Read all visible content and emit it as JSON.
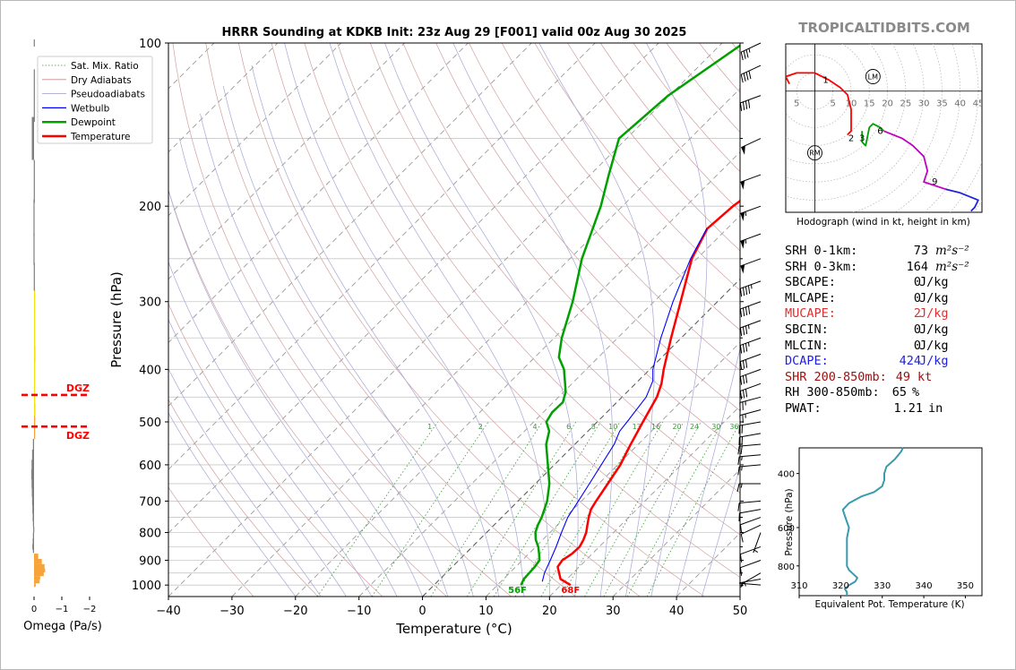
{
  "chart_data": [
    {
      "type": "line",
      "name": "skewt",
      "title": "HRRR Sounding at KDKB Init: 23z Aug 29 [F001] valid 00z Aug 30 2025",
      "xlabel": "Temperature (°C)",
      "ylabel": "Pressure (hPa)",
      "xlim": [
        -40,
        50
      ],
      "ylim": [
        1050,
        100
      ],
      "y_scale": "log",
      "x_ticks": [
        "−40",
        "−30",
        "−20",
        "−10",
        "0",
        "10",
        "20",
        "30",
        "40",
        "50"
      ],
      "y_ticks": [
        "100",
        "200",
        "300",
        "400",
        "500",
        "600",
        "700",
        "800",
        "900",
        "1000"
      ],
      "grid": true,
      "legend_position": "top-left",
      "legend": [
        {
          "label": "Sat. Mix. Ratio",
          "color": "#2ca02c",
          "style": "dotted"
        },
        {
          "label": "Dry Adiabats",
          "color": "#c38a8a",
          "style": "solid"
        },
        {
          "label": "Pseudoadiabats",
          "color": "#9a9ac8",
          "style": "solid"
        },
        {
          "label": "Wetbulb",
          "color": "#0000ff",
          "style": "solid"
        },
        {
          "label": "Dewpoint",
          "color": "#00a000",
          "style": "solid"
        },
        {
          "label": "Temperature",
          "color": "#ff0000",
          "style": "solid"
        }
      ],
      "mixing_ratio_labels": [
        "1",
        "2",
        "4",
        "6",
        "8",
        "10",
        "13",
        "16",
        "20",
        "24",
        "30",
        "36"
      ],
      "series": [
        {
          "key": "temperature",
          "color": "#ff0000",
          "points": [
            [
              1000,
              21.5
            ],
            [
              975,
              19.0
            ],
            [
              950,
              17.8
            ],
            [
              925,
              16.6
            ],
            [
              900,
              16.3
            ],
            [
              875,
              16.8
            ],
            [
              850,
              16.9
            ],
            [
              825,
              16.4
            ],
            [
              800,
              15.7
            ],
            [
              775,
              14.7
            ],
            [
              750,
              13.7
            ],
            [
              725,
              12.8
            ],
            [
              700,
              12.3
            ],
            [
              650,
              11.4
            ],
            [
              600,
              10.4
            ],
            [
              550,
              8.8
            ],
            [
              500,
              7.2
            ],
            [
              450,
              5.5
            ],
            [
              425,
              4.1
            ],
            [
              400,
              2.2
            ],
            [
              350,
              -1.6
            ],
            [
              300,
              -5.8
            ],
            [
              250,
              -10.8
            ],
            [
              220,
              -13.1
            ],
            [
              200,
              -12.6
            ],
            [
              175,
              -10.9
            ],
            [
              150,
              -8.8
            ],
            [
              125,
              -5.9
            ],
            [
              100,
              -1.7
            ]
          ]
        },
        {
          "key": "dewpoint",
          "color": "#00a000",
          "points": [
            [
              1000,
              13.7
            ],
            [
              975,
              13.2
            ],
            [
              950,
              13.1
            ],
            [
              925,
              13.0
            ],
            [
              900,
              12.7
            ],
            [
              875,
              11.6
            ],
            [
              850,
              10.4
            ],
            [
              825,
              8.9
            ],
            [
              800,
              7.7
            ],
            [
              775,
              6.9
            ],
            [
              750,
              6.3
            ],
            [
              700,
              4.6
            ],
            [
              650,
              2.2
            ],
            [
              600,
              -1.0
            ],
            [
              550,
              -4.5
            ],
            [
              520,
              -6.1
            ],
            [
              500,
              -8.0
            ],
            [
              480,
              -8.6
            ],
            [
              460,
              -8.5
            ],
            [
              440,
              -9.7
            ],
            [
              400,
              -13.5
            ],
            [
              380,
              -16.2
            ],
            [
              350,
              -18.8
            ],
            [
              300,
              -22.8
            ],
            [
              250,
              -28.1
            ],
            [
              200,
              -33.4
            ],
            [
              175,
              -37.1
            ],
            [
              150,
              -41.2
            ],
            [
              125,
              -40.2
            ],
            [
              100,
              -36.6
            ]
          ]
        },
        {
          "key": "wetbulb",
          "color": "#0000ff",
          "points": [
            [
              985,
              16.5
            ],
            [
              950,
              15.5
            ],
            [
              900,
              14.4
            ],
            [
              850,
              13.2
            ],
            [
              800,
              11.8
            ],
            [
              750,
              10.4
            ],
            [
              700,
              9.5
            ],
            [
              650,
              8.5
            ],
            [
              600,
              7.4
            ],
            [
              550,
              6.2
            ],
            [
              520,
              5.0
            ],
            [
              500,
              4.7
            ],
            [
              450,
              3.8
            ],
            [
              420,
              2.3
            ],
            [
              400,
              0.5
            ],
            [
              350,
              -3.2
            ],
            [
              300,
              -7.0
            ],
            [
              250,
              -11.0
            ],
            [
              220,
              -13.2
            ]
          ]
        }
      ],
      "surface_dewpoint_label": "56F",
      "surface_temperature_label": "68F",
      "wind_barbs": [
        {
          "p": 1000,
          "dir": 275,
          "spd": 5
        },
        {
          "p": 975,
          "dir": 260,
          "spd": 5
        },
        {
          "p": 950,
          "dir": 240,
          "spd": 5
        },
        {
          "p": 900,
          "dir": 250,
          "spd": 10
        },
        {
          "p": 850,
          "dir": 250,
          "spd": 10
        },
        {
          "p": 800,
          "dir": 200,
          "spd": 5
        },
        {
          "p": 775,
          "dir": 245,
          "spd": 10
        },
        {
          "p": 750,
          "dir": 250,
          "spd": 10
        },
        {
          "p": 725,
          "dir": 260,
          "spd": 10
        },
        {
          "p": 700,
          "dir": 265,
          "spd": 10
        },
        {
          "p": 650,
          "dir": 270,
          "spd": 15
        },
        {
          "p": 600,
          "dir": 265,
          "spd": 15
        },
        {
          "p": 575,
          "dir": 265,
          "spd": 15
        },
        {
          "p": 550,
          "dir": 265,
          "spd": 20
        },
        {
          "p": 525,
          "dir": 260,
          "spd": 20
        },
        {
          "p": 500,
          "dir": 260,
          "spd": 20
        },
        {
          "p": 475,
          "dir": 255,
          "spd": 25
        },
        {
          "p": 450,
          "dir": 255,
          "spd": 25
        },
        {
          "p": 425,
          "dir": 250,
          "spd": 30
        },
        {
          "p": 400,
          "dir": 250,
          "spd": 30
        },
        {
          "p": 375,
          "dir": 250,
          "spd": 30
        },
        {
          "p": 350,
          "dir": 250,
          "spd": 35
        },
        {
          "p": 325,
          "dir": 250,
          "spd": 35
        },
        {
          "p": 300,
          "dir": 250,
          "spd": 40
        },
        {
          "p": 275,
          "dir": 250,
          "spd": 45
        },
        {
          "p": 250,
          "dir": 250,
          "spd": 50
        },
        {
          "p": 225,
          "dir": 250,
          "spd": 55
        },
        {
          "p": 200,
          "dir": 250,
          "spd": 55
        },
        {
          "p": 175,
          "dir": 250,
          "spd": 50
        },
        {
          "p": 150,
          "dir": 245,
          "spd": 50
        },
        {
          "p": 125,
          "dir": 250,
          "spd": 40
        },
        {
          "p": 110,
          "dir": 245,
          "spd": 40
        },
        {
          "p": 100,
          "dir": 245,
          "spd": 35
        }
      ]
    },
    {
      "type": "bar",
      "name": "omega",
      "xlabel": "Omega (Pa/s)",
      "x_ticks": [
        "0",
        "−1",
        "−2"
      ],
      "xlim": [
        0.05,
        -2.0
      ],
      "dgz_label": "DGZ",
      "dgz_levels": [
        446,
        510
      ],
      "bars": [
        {
          "p": 1000,
          "w": -0.06
        },
        {
          "p": 985,
          "w": -0.2
        },
        {
          "p": 970,
          "w": -0.22
        },
        {
          "p": 955,
          "w": -0.35
        },
        {
          "p": 940,
          "w": -0.4
        },
        {
          "p": 925,
          "w": -0.38
        },
        {
          "p": 905,
          "w": -0.28
        },
        {
          "p": 885,
          "w": -0.15
        },
        {
          "p": 865,
          "w": 0.04
        },
        {
          "p": 850,
          "w": 0.06
        },
        {
          "p": 830,
          "w": 0.05
        },
        {
          "p": 810,
          "w": 0.04
        },
        {
          "p": 790,
          "w": 0.03
        },
        {
          "p": 770,
          "w": 0.04
        },
        {
          "p": 750,
          "w": 0.05
        },
        {
          "p": 725,
          "w": 0.06
        },
        {
          "p": 700,
          "w": 0.07
        },
        {
          "p": 675,
          "w": 0.08
        },
        {
          "p": 650,
          "w": 0.09
        },
        {
          "p": 625,
          "w": 0.1
        },
        {
          "p": 600,
          "w": 0.09
        },
        {
          "p": 575,
          "w": 0.07
        },
        {
          "p": 550,
          "w": 0.04
        },
        {
          "p": 525,
          "w": -0.02
        },
        {
          "p": 500,
          "w": -0.04
        },
        {
          "p": 475,
          "w": -0.05
        },
        {
          "p": 450,
          "w": -0.03
        },
        {
          "p": 425,
          "w": -0.03
        },
        {
          "p": 400,
          "w": -0.02
        },
        {
          "p": 375,
          "w": -0.05
        },
        {
          "p": 350,
          "w": -0.04
        },
        {
          "p": 325,
          "w": -0.02
        },
        {
          "p": 300,
          "w": -0.01
        },
        {
          "p": 270,
          "w": 0.01
        },
        {
          "p": 240,
          "w": 0.02
        },
        {
          "p": 210,
          "w": 0.02
        },
        {
          "p": 180,
          "w": 0.01
        },
        {
          "p": 150,
          "w": 0.08
        },
        {
          "p": 125,
          "w": 0.01
        },
        {
          "p": 100,
          "w": 0.01
        }
      ]
    },
    {
      "type": "line",
      "name": "hodograph",
      "caption": "Hodograph (wind in kt, height in km)",
      "ring_labels": [
        "5",
        "5",
        "10",
        "15",
        "20",
        "25",
        "30",
        "35",
        "40",
        "45"
      ],
      "x_range": [
        -8,
        46
      ],
      "y_range": [
        -38,
        13
      ],
      "segments": [
        {
          "color": "#ff0000",
          "points": [
            [
              -7,
              2
            ],
            [
              -8,
              4
            ],
            [
              -5,
              5
            ],
            [
              0,
              5
            ],
            [
              4,
              3
            ],
            [
              7,
              1
            ],
            [
              9,
              -1
            ],
            [
              10,
              -5
            ],
            [
              10,
              -9
            ],
            [
              10,
              -11
            ],
            [
              9,
              -12
            ]
          ]
        },
        {
          "color": "#00a000",
          "points": [
            [
              13,
              -11
            ],
            [
              13,
              -14
            ],
            [
              14,
              -15
            ],
            [
              15,
              -10
            ],
            [
              16,
              -9
            ],
            [
              18,
              -10
            ],
            [
              19,
              -11
            ]
          ]
        },
        {
          "color": "#c000c0",
          "points": [
            [
              19,
              -11
            ],
            [
              24,
              -13
            ],
            [
              27,
              -15
            ],
            [
              30,
              -18
            ],
            [
              31,
              -22
            ],
            [
              30,
              -25
            ],
            [
              33,
              -26
            ],
            [
              36,
              -27
            ]
          ]
        },
        {
          "color": "#2222dd",
          "points": [
            [
              36,
              -27
            ],
            [
              40,
              -28
            ],
            [
              45,
              -30
            ],
            [
              44,
              -32
            ],
            [
              43,
              -33
            ]
          ]
        }
      ],
      "labels": [
        {
          "text": "1",
          "x": 3,
          "y": 3
        },
        {
          "text": "2",
          "x": 10,
          "y": -13
        },
        {
          "text": "3",
          "x": 13,
          "y": -13
        },
        {
          "text": "6",
          "x": 18,
          "y": -11
        },
        {
          "text": "9",
          "x": 33,
          "y": -25
        }
      ],
      "markers": [
        {
          "text": "LM",
          "x": 16,
          "y": 4
        },
        {
          "text": "RM",
          "x": 0,
          "y": -17
        }
      ]
    },
    {
      "type": "line",
      "name": "theta_e",
      "xlabel": "Equivalent Pot. Temperature (K)",
      "ylabel": "Pressure (hPa)",
      "x_ticks": [
        "310",
        "320",
        "330",
        "340",
        "350"
      ],
      "xlim": [
        310,
        354
      ],
      "y_ticks": [
        "400",
        "600",
        "800"
      ],
      "ylim": [
        1000,
        330
      ],
      "color": "#3a9ab0",
      "points": [
        [
          1000,
          321.5
        ],
        [
          975,
          321.5
        ],
        [
          950,
          321
        ],
        [
          925,
          322
        ],
        [
          900,
          323.5
        ],
        [
          875,
          324
        ],
        [
          850,
          323
        ],
        [
          825,
          322
        ],
        [
          800,
          321.5
        ],
        [
          775,
          321.5
        ],
        [
          750,
          321.5
        ],
        [
          700,
          321.5
        ],
        [
          650,
          321.5
        ],
        [
          600,
          322
        ],
        [
          575,
          321.5
        ],
        [
          550,
          321
        ],
        [
          525,
          320.5
        ],
        [
          500,
          322
        ],
        [
          475,
          325
        ],
        [
          460,
          328
        ],
        [
          440,
          330
        ],
        [
          420,
          330.5
        ],
        [
          400,
          330.5
        ],
        [
          380,
          331
        ],
        [
          360,
          333
        ],
        [
          340,
          334.5
        ],
        [
          330,
          335
        ]
      ]
    }
  ],
  "site_label": "TROPICALTIDBITS.COM",
  "params": [
    {
      "label": "SRH 0-1km:",
      "value": "73",
      "unit": "m²s⁻²",
      "color": "#000000"
    },
    {
      "label": "SRH 0-3km:",
      "value": "164",
      "unit": "m²s⁻²",
      "color": "#000000"
    },
    {
      "label": "SBCAPE:",
      "value": "0",
      "unit": "J/kg",
      "color": "#000000"
    },
    {
      "label": "MLCAPE:",
      "value": "0",
      "unit": "J/kg",
      "color": "#000000"
    },
    {
      "label": "MUCAPE:",
      "value": "2",
      "unit": "J/kg",
      "color": "#e03030"
    },
    {
      "label": "SBCIN:",
      "value": "0",
      "unit": "J/kg",
      "color": "#000000"
    },
    {
      "label": "MLCIN:",
      "value": "0",
      "unit": "J/kg",
      "color": "#000000"
    },
    {
      "label": "DCAPE:",
      "value": "424",
      "unit": "J/kg",
      "color": "#2020e0"
    },
    {
      "label": "SHR 200-850mb:",
      "value": "49",
      "unit": "kt",
      "color": "#a01010"
    },
    {
      "label": "RH 300-850mb:",
      "value": "65",
      "unit": "%",
      "color": "#000000"
    },
    {
      "label": "PWAT:",
      "value": "1.21",
      "unit": "in",
      "color": "#000000"
    }
  ]
}
